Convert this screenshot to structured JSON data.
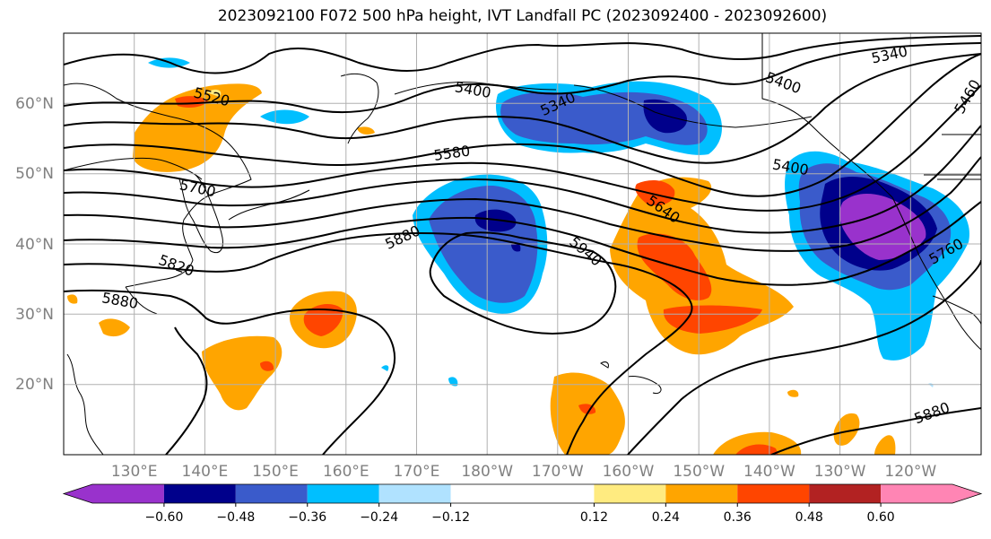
{
  "title": "2023092100 F072 500 hPa height, IVT Landfall PC (2023092400 - 2023092600)",
  "axes": {
    "lat_labels": [
      "20°N",
      "30°N",
      "40°N",
      "50°N",
      "60°N"
    ],
    "lon_labels": [
      "130°E",
      "140°E",
      "150°E",
      "160°E",
      "170°E",
      "180°W",
      "170°W",
      "160°W",
      "150°W",
      "140°W",
      "130°W",
      "120°W"
    ],
    "lon_range": [
      "120°E",
      "110°W"
    ],
    "lat_range": [
      "10°N",
      "70°N"
    ],
    "grid": true
  },
  "colorbar": {
    "ticks": [
      "−0.60",
      "−0.48",
      "−0.36",
      "−0.24",
      "−0.12",
      "0.12",
      "0.24",
      "0.36",
      "0.48",
      "0.60"
    ],
    "colors": [
      "#9932cc",
      "#00008b",
      "#3a5bcb",
      "#00bfff",
      "#b0e2ff",
      "#ffffff",
      "#ffeb80",
      "#ffa500",
      "#ff4500",
      "#b22222",
      "#ff85b4"
    ],
    "extend": "both"
  },
  "contour_labels": [
    {
      "text": "5520",
      "lon": 141,
      "lat": 61,
      "angle": 15
    },
    {
      "text": "5400",
      "lon": 178,
      "lat": 62,
      "angle": 10
    },
    {
      "text": "5340",
      "lon": 190,
      "lat": 60,
      "angle": -25
    },
    {
      "text": "5400",
      "lon": 222,
      "lat": 63,
      "angle": 20
    },
    {
      "text": "5340",
      "lon": 237,
      "lat": 67,
      "angle": -12
    },
    {
      "text": "5460",
      "lon": 248,
      "lat": 61,
      "angle": -60
    },
    {
      "text": "5580",
      "lon": 175,
      "lat": 53,
      "angle": -8
    },
    {
      "text": "5400",
      "lon": 223,
      "lat": 51,
      "angle": 10
    },
    {
      "text": "5700",
      "lon": 139,
      "lat": 48,
      "angle": 12
    },
    {
      "text": "5640",
      "lon": 205,
      "lat": 45,
      "angle": 35
    },
    {
      "text": "5880",
      "lon": 168,
      "lat": 41,
      "angle": -25
    },
    {
      "text": "5940",
      "lon": 194,
      "lat": 39,
      "angle": 40
    },
    {
      "text": "5760",
      "lon": 245,
      "lat": 39,
      "angle": -30
    },
    {
      "text": "5820",
      "lon": 136,
      "lat": 37,
      "angle": 20
    },
    {
      "text": "5880",
      "lon": 128,
      "lat": 32,
      "angle": 10
    },
    {
      "text": "5880",
      "lon": 243,
      "lat": 16,
      "angle": -20
    }
  ]
}
